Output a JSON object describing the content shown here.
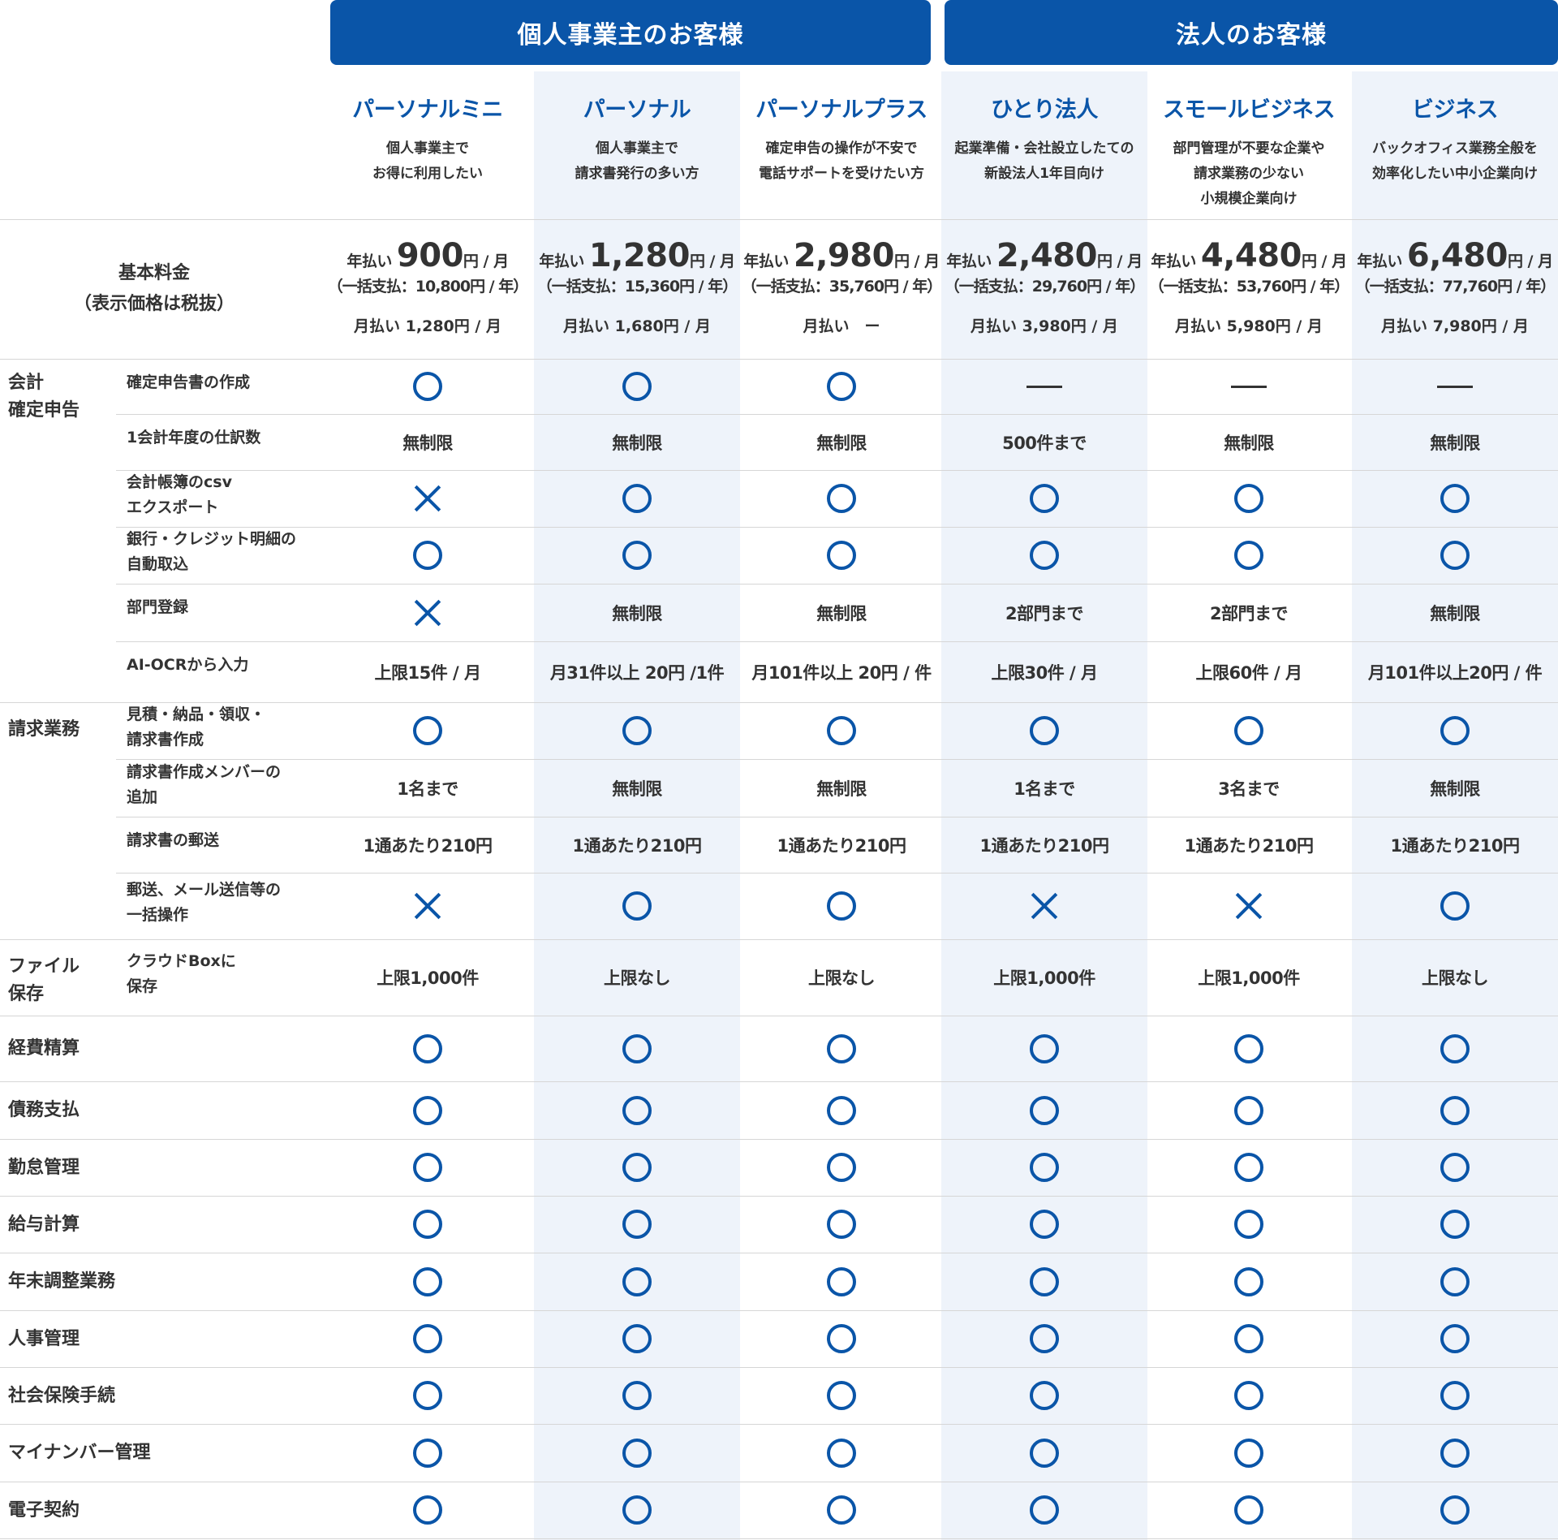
{
  "groups": {
    "individual": "個人事業主のお客様",
    "corporate": "法人のお客様"
  },
  "plans": [
    {
      "name": "パーソナルミニ",
      "desc1": "個人事業主で",
      "desc2": "お得に利用したい",
      "desc3": "",
      "annual_label": "年払い",
      "annual_price": "900",
      "unit": "円 / 月",
      "lump": "（一括支払：10,800円 / 年）",
      "monthly": "月払い 1,280円 / 月"
    },
    {
      "name": "パーソナル",
      "desc1": "個人事業主で",
      "desc2": "請求書発行の多い方",
      "desc3": "",
      "annual_label": "年払い",
      "annual_price": "1,280",
      "unit": "円 / 月",
      "lump": "（一括支払：15,360円 / 年）",
      "monthly": "月払い 1,680円 / 月"
    },
    {
      "name": "パーソナルプラス",
      "desc1": "確定申告の操作が不安で",
      "desc2": "電話サポートを受けたい方",
      "desc3": "",
      "annual_label": "年払い",
      "annual_price": "2,980",
      "unit": "円 / 月",
      "lump": "（一括支払：35,760円 / 年）",
      "monthly": "月払い　ー"
    },
    {
      "name": "ひとり法人",
      "desc1": "起業準備・会社設立したての",
      "desc2": "新設法人1年目向け",
      "desc3": "",
      "annual_label": "年払い",
      "annual_price": "2,480",
      "unit": "円 / 月",
      "lump": "（一括支払：29,760円 / 年）",
      "monthly": "月払い 3,980円 / 月"
    },
    {
      "name": "スモールビジネス",
      "desc1": "部門管理が不要な企業や",
      "desc2": "請求業務の少ない",
      "desc3": "小規模企業向け",
      "annual_label": "年払い",
      "annual_price": "4,480",
      "unit": "円 / 月",
      "lump": "（一括支払：53,760円 / 年）",
      "monthly": "月払い 5,980円 / 月"
    },
    {
      "name": "ビジネス",
      "desc1": "バックオフィス業務全般を",
      "desc2": "効率化したい中小企業向け",
      "desc3": "",
      "annual_label": "年払い",
      "annual_price": "6,480",
      "unit": "円 / 月",
      "lump": "（一括支払：77,760円 / 年）",
      "monthly": "月払い 7,980円 / 月"
    }
  ],
  "price_label": {
    "line1": "基本料金",
    "line2": "（表示価格は税抜）"
  },
  "categories": {
    "accounting": {
      "line1": "会計",
      "line2": "確定申告"
    },
    "invoice": {
      "line1": "請求業務",
      "line2": ""
    },
    "file": {
      "line1": "ファイル",
      "line2": "保存"
    }
  },
  "rows": [
    {
      "label1": "確定申告書の作成",
      "label2": "",
      "cells": [
        "○",
        "○",
        "○",
        "—",
        "—",
        "—"
      ]
    },
    {
      "label1": "1会計年度の仕訳数",
      "label2": "",
      "cells": [
        "無制限",
        "無制限",
        "無制限",
        "500件まで",
        "無制限",
        "無制限"
      ]
    },
    {
      "label1": "会計帳簿のcsv",
      "label2": "エクスポート",
      "cells": [
        "×",
        "○",
        "○",
        "○",
        "○",
        "○"
      ]
    },
    {
      "label1": "銀行・クレジット明細の",
      "label2": "自動取込",
      "cells": [
        "○",
        "○",
        "○",
        "○",
        "○",
        "○"
      ]
    },
    {
      "label1": "部門登録",
      "label2": "",
      "cells": [
        "×",
        "無制限",
        "無制限",
        "2部門まで",
        "2部門まで",
        "無制限"
      ]
    },
    {
      "label1": "AI-OCRから入力",
      "label2": "",
      "cells": [
        "上限15件 / 月",
        "月31件以上 20円 /1件",
        "月101件以上 20円 / 件",
        "上限30件 / 月",
        "上限60件 / 月",
        "月101件以上20円 / 件"
      ]
    },
    {
      "label1": "見積・納品・領収・",
      "label2": "請求書作成",
      "cells": [
        "○",
        "○",
        "○",
        "○",
        "○",
        "○"
      ]
    },
    {
      "label1": "請求書作成メンバーの",
      "label2": "追加",
      "cells": [
        "1名まで",
        "無制限",
        "無制限",
        "1名まで",
        "3名まで",
        "無制限"
      ]
    },
    {
      "label1": "請求書の郵送",
      "label2": "",
      "cells": [
        "1通あたり210円",
        "1通あたり210円",
        "1通あたり210円",
        "1通あたり210円",
        "1通あたり210円",
        "1通あたり210円"
      ]
    },
    {
      "label1": "郵送、メール送信等の",
      "label2": "一括操作",
      "cells": [
        "×",
        "○",
        "○",
        "×",
        "×",
        "○"
      ]
    },
    {
      "label1": "クラウドBoxに",
      "label2": "保存",
      "cells": [
        "上限1,000件",
        "上限なし",
        "上限なし",
        "上限1,000件",
        "上限1,000件",
        "上限なし"
      ]
    },
    {
      "label1": "経費精算",
      "label2": "",
      "cells": [
        "○",
        "○",
        "○",
        "○",
        "○",
        "○"
      ]
    },
    {
      "label1": "債務支払",
      "label2": "",
      "cells": [
        "○",
        "○",
        "○",
        "○",
        "○",
        "○"
      ]
    },
    {
      "label1": "勤怠管理",
      "label2": "",
      "cells": [
        "○",
        "○",
        "○",
        "○",
        "○",
        "○"
      ]
    },
    {
      "label1": "給与計算",
      "label2": "",
      "cells": [
        "○",
        "○",
        "○",
        "○",
        "○",
        "○"
      ]
    },
    {
      "label1": "年末調整業務",
      "label2": "",
      "cells": [
        "○",
        "○",
        "○",
        "○",
        "○",
        "○"
      ]
    },
    {
      "label1": "人事管理",
      "label2": "",
      "cells": [
        "○",
        "○",
        "○",
        "○",
        "○",
        "○"
      ]
    },
    {
      "label1": "社会保険手続",
      "label2": "",
      "cells": [
        "○",
        "○",
        "○",
        "○",
        "○",
        "○"
      ]
    },
    {
      "label1": "マイナンバー管理",
      "label2": "",
      "cells": [
        "○",
        "○",
        "○",
        "○",
        "○",
        "○"
      ]
    },
    {
      "label1": "電子契約",
      "label2": "",
      "cells": [
        "○",
        "○",
        "○",
        "○",
        "○",
        "○"
      ]
    }
  ],
  "colors": {
    "brand": "#0a55a8",
    "column_tint": "#eef3fa",
    "divider": "#d6d6d6"
  }
}
